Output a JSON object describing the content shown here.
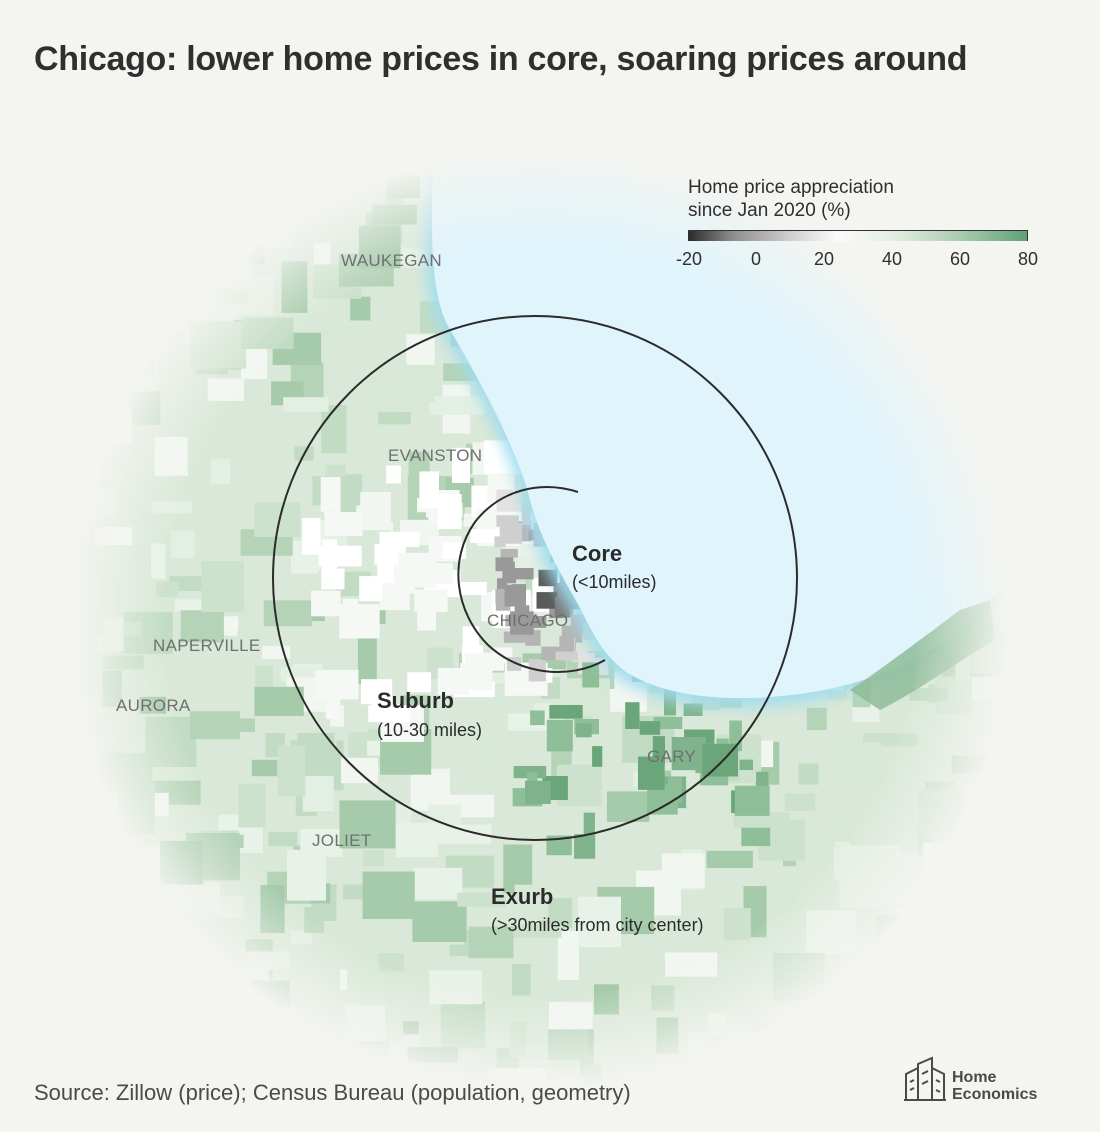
{
  "title": "Chicago: lower home prices in core, soaring prices around",
  "legend": {
    "title_line1": "Home price appreciation",
    "title_line2": "since Jan 2020 (%)",
    "ticks": [
      "-20",
      "0",
      "20",
      "40",
      "60",
      "80"
    ],
    "range": [
      -20,
      80
    ]
  },
  "cities": {
    "waukegan": "WAUKEGAN",
    "evanston": "EVANSTON",
    "chicago": "CHICAGO",
    "naperville": "NAPERVILLE",
    "aurora": "AURORA",
    "joliet": "JOLIET",
    "gary": "GARY"
  },
  "zones": {
    "core": {
      "name": "Core",
      "desc": "(<10miles)"
    },
    "suburb": {
      "name": "Suburb",
      "desc": "(10-30 miles)"
    },
    "exurb": {
      "name": "Exurb",
      "desc": "(>30miles from city center)"
    }
  },
  "source": "Source: Zillow (price); Census Bureau (population, geometry)",
  "logo": {
    "line1": "Home",
    "line2": "Economics"
  },
  "colors": {
    "background": "#f4f5f1",
    "lake": "#dff4fb",
    "lake_shore": "#9fdcef",
    "low": "#2c2c2c",
    "high": "#5ea276"
  }
}
